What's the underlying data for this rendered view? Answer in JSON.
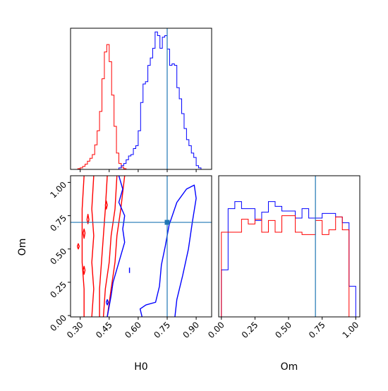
{
  "chart_data": {
    "type": "corner",
    "parameters": [
      "H0",
      "Om"
    ],
    "truth": {
      "H0": 0.75,
      "Om": 0.7
    },
    "colors": {
      "series_a": "#0000ff",
      "series_b": "#ff0000",
      "truth": "#1f77b4",
      "frame": "#000000"
    },
    "panels": [
      {
        "name": "hist-h0",
        "type": "histogram",
        "xlim": [
          0.25,
          0.98
        ],
        "xticks": [
          0.3,
          0.45,
          0.6,
          0.75,
          0.9
        ],
        "bin_edges": [
          0.25,
          0.2625,
          0.275,
          0.2875,
          0.3,
          0.3125,
          0.325,
          0.3375,
          0.35,
          0.3625,
          0.375,
          0.3875,
          0.4,
          0.4125,
          0.425,
          0.4375,
          0.45,
          0.4625,
          0.475,
          0.4875,
          0.5,
          0.5125,
          0.525,
          0.5375,
          0.55,
          0.5625,
          0.575,
          0.5875,
          0.6,
          0.6125,
          0.625,
          0.6375,
          0.65,
          0.6625,
          0.675,
          0.6875,
          0.7,
          0.7125,
          0.725,
          0.7375,
          0.75,
          0.7625,
          0.775,
          0.7875,
          0.8,
          0.8125,
          0.825,
          0.8375,
          0.85,
          0.8625,
          0.875,
          0.8875,
          0.9,
          0.9125,
          0.925,
          0.9375,
          0.95,
          0.9625,
          0.975
        ],
        "series": [
          {
            "color_key": "series_b",
            "counts": [
              0,
              0,
              0,
              1,
              2,
              4,
              7,
              11,
              15,
              20,
              33,
              52,
              78,
              122,
              158,
              168,
              145,
              100,
              58,
              22,
              8,
              3,
              1,
              0,
              0,
              0,
              0,
              0,
              0,
              0,
              0,
              0,
              0,
              0,
              0,
              0,
              0,
              0,
              0,
              0,
              0,
              0,
              0,
              0,
              0,
              0,
              0,
              0,
              0,
              0,
              0,
              0,
              0,
              0,
              0,
              0,
              0,
              0
            ]
          },
          {
            "color_key": "series_a",
            "counts": [
              0,
              0,
              0,
              0,
              0,
              0,
              0,
              0,
              0,
              0,
              0,
              0,
              0,
              0,
              0,
              0,
              0,
              0,
              0,
              0,
              2,
              5,
              8,
              13,
              18,
              20,
              28,
              32,
              52,
              90,
              115,
              118,
              140,
              150,
              163,
              185,
              180,
              163,
              178,
              180,
              162,
              140,
              142,
              140,
              110,
              95,
              75,
              55,
              40,
              32,
              22,
              16,
              5,
              2,
              0,
              0,
              0,
              0
            ]
          }
        ],
        "ymax": 190
      },
      {
        "name": "contour-h0-om",
        "type": "contour",
        "xlim": [
          0.25,
          0.98
        ],
        "ylim": [
          -0.01,
          1.05
        ],
        "xticks": [
          0.3,
          0.45,
          0.6,
          0.75,
          0.9
        ],
        "yticks": [
          0.0,
          0.25,
          0.5,
          0.75,
          1.0
        ],
        "xlabel": "H0",
        "ylabel": "Om",
        "curves": [
          {
            "color_key": "series_b",
            "points": [
              [
                0.32,
                -0.01
              ],
              [
                0.32,
                0.2
              ],
              [
                0.31,
                0.4
              ],
              [
                0.31,
                0.6
              ],
              [
                0.31,
                0.8
              ],
              [
                0.32,
                1.05
              ]
            ]
          },
          {
            "color_key": "series_b",
            "points": [
              [
                0.36,
                -0.01
              ],
              [
                0.37,
                0.2
              ],
              [
                0.36,
                0.4
              ],
              [
                0.37,
                0.6
              ],
              [
                0.36,
                0.8
              ],
              [
                0.37,
                1.05
              ]
            ]
          },
          {
            "color_key": "series_b",
            "points": [
              [
                0.4,
                -0.01
              ],
              [
                0.4,
                0.2
              ],
              [
                0.41,
                0.4
              ],
              [
                0.42,
                0.6
              ],
              [
                0.43,
                0.8
              ],
              [
                0.44,
                1.05
              ]
            ]
          },
          {
            "color_key": "series_b",
            "points": [
              [
                0.42,
                -0.01
              ],
              [
                0.43,
                0.2
              ],
              [
                0.45,
                0.4
              ],
              [
                0.46,
                0.6
              ],
              [
                0.48,
                0.8
              ],
              [
                0.49,
                1.05
              ]
            ]
          },
          {
            "color_key": "series_b",
            "points": [
              [
                0.44,
                -0.01
              ],
              [
                0.46,
                0.2
              ],
              [
                0.48,
                0.4
              ],
              [
                0.49,
                0.6
              ],
              [
                0.51,
                0.8
              ],
              [
                0.53,
                1.05
              ]
            ]
          },
          {
            "color_key": "series_b",
            "points": [
              [
                0.335,
                0.72
              ],
              [
                0.34,
                0.76
              ],
              [
                0.345,
                0.72
              ],
              [
                0.34,
                0.69
              ],
              [
                0.335,
                0.72
              ]
            ]
          },
          {
            "color_key": "series_b",
            "points": [
              [
                0.315,
                0.62
              ],
              [
                0.32,
                0.65
              ],
              [
                0.325,
                0.62
              ],
              [
                0.32,
                0.58
              ],
              [
                0.315,
                0.62
              ]
            ]
          },
          {
            "color_key": "series_b",
            "points": [
              [
                0.285,
                0.52
              ],
              [
                0.29,
                0.54
              ],
              [
                0.295,
                0.52
              ],
              [
                0.29,
                0.5
              ],
              [
                0.285,
                0.52
              ]
            ]
          },
          {
            "color_key": "series_b",
            "points": [
              [
                0.315,
                0.34
              ],
              [
                0.32,
                0.37
              ],
              [
                0.325,
                0.34
              ],
              [
                0.32,
                0.31
              ],
              [
                0.315,
                0.34
              ]
            ]
          },
          {
            "color_key": "series_b",
            "points": [
              [
                0.43,
                0.83
              ],
              [
                0.435,
                0.86
              ],
              [
                0.44,
                0.83
              ],
              [
                0.435,
                0.8
              ],
              [
                0.43,
                0.83
              ]
            ]
          },
          {
            "color_key": "series_a",
            "points": [
              [
                0.5,
                1.05
              ],
              [
                0.52,
                0.95
              ],
              [
                0.5,
                0.85
              ],
              [
                0.53,
                0.75
              ],
              [
                0.52,
                0.65
              ],
              [
                0.53,
                0.55
              ],
              [
                0.51,
                0.45
              ],
              [
                0.49,
                0.35
              ],
              [
                0.47,
                0.25
              ],
              [
                0.46,
                0.15
              ],
              [
                0.44,
                -0.01
              ]
            ]
          },
          {
            "color_key": "series_a",
            "points": [
              [
                0.62,
                -0.01
              ],
              [
                0.61,
                0.05
              ],
              [
                0.64,
                0.08
              ],
              [
                0.69,
                0.1
              ],
              [
                0.71,
                0.22
              ],
              [
                0.72,
                0.38
              ],
              [
                0.74,
                0.52
              ],
              [
                0.76,
                0.68
              ],
              [
                0.8,
                0.85
              ],
              [
                0.85,
                0.95
              ],
              [
                0.89,
                0.98
              ],
              [
                0.9,
                0.88
              ],
              [
                0.88,
                0.7
              ],
              [
                0.86,
                0.5
              ],
              [
                0.83,
                0.3
              ],
              [
                0.8,
                0.12
              ],
              [
                0.79,
                -0.01
              ]
            ]
          },
          {
            "color_key": "series_a",
            "points": [
              [
                0.555,
                0.36
              ],
              [
                0.555,
                0.32
              ]
            ]
          },
          {
            "color_key": "series_a",
            "points": [
              [
                0.435,
                0.1
              ],
              [
                0.44,
                0.12
              ],
              [
                0.445,
                0.1
              ],
              [
                0.44,
                0.08
              ],
              [
                0.435,
                0.1
              ]
            ]
          }
        ]
      },
      {
        "name": "hist-om",
        "type": "histogram",
        "xlim": [
          -0.02,
          1.03
        ],
        "xticks": [
          0.0,
          0.25,
          0.5,
          0.75,
          1.0
        ],
        "xlabel": "Om",
        "bin_edges": [
          0.0,
          0.05,
          0.1,
          0.15,
          0.2,
          0.25,
          0.3,
          0.35,
          0.4,
          0.45,
          0.5,
          0.55,
          0.6,
          0.65,
          0.7,
          0.75,
          0.8,
          0.85,
          0.9,
          0.95,
          1.0
        ],
        "series": [
          {
            "color_key": "series_a",
            "counts": [
              40,
              92,
              98,
              92,
              92,
              82,
              89,
              98,
              94,
              90,
              90,
              84,
              92,
              84,
              84,
              88,
              88,
              85,
              80,
              26
            ]
          },
          {
            "color_key": "series_b",
            "counts": [
              72,
              72,
              72,
              83,
              79,
              83,
              72,
              82,
              72,
              86,
              86,
              72,
              70,
              70,
              82,
              70,
              74,
              85,
              74,
              0
            ]
          }
        ],
        "ymax": 120
      }
    ]
  }
}
